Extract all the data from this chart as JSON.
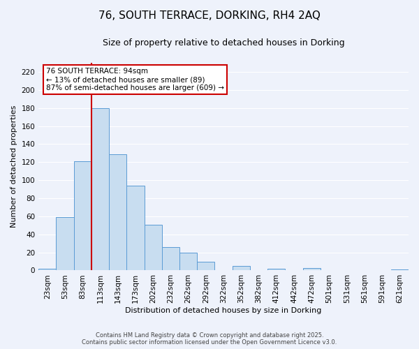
{
  "title": "76, SOUTH TERRACE, DORKING, RH4 2AQ",
  "subtitle": "Size of property relative to detached houses in Dorking",
  "xlabel": "Distribution of detached houses by size in Dorking",
  "ylabel": "Number of detached properties",
  "bar_color": "#c8ddf0",
  "bar_edge_color": "#5b9bd5",
  "background_color": "#eef2fb",
  "grid_color": "#ffffff",
  "bin_labels": [
    "23sqm",
    "53sqm",
    "83sqm",
    "113sqm",
    "143sqm",
    "173sqm",
    "202sqm",
    "232sqm",
    "262sqm",
    "292sqm",
    "322sqm",
    "352sqm",
    "382sqm",
    "412sqm",
    "442sqm",
    "472sqm",
    "501sqm",
    "531sqm",
    "561sqm",
    "591sqm",
    "621sqm"
  ],
  "bar_values": [
    2,
    59,
    121,
    180,
    129,
    94,
    51,
    26,
    20,
    10,
    0,
    5,
    0,
    2,
    0,
    3,
    0,
    0,
    0,
    0,
    1
  ],
  "ylim": [
    0,
    230
  ],
  "yticks": [
    0,
    20,
    40,
    60,
    80,
    100,
    120,
    140,
    160,
    180,
    200,
    220
  ],
  "vline_color": "#cc0000",
  "annotation_title": "76 SOUTH TERRACE: 94sqm",
  "annotation_line1": "← 13% of detached houses are smaller (89)",
  "annotation_line2": "87% of semi-detached houses are larger (609) →",
  "annotation_box_facecolor": "#ffffff",
  "annotation_box_edgecolor": "#cc0000",
  "footer_line1": "Contains HM Land Registry data © Crown copyright and database right 2025.",
  "footer_line2": "Contains public sector information licensed under the Open Government Licence v3.0.",
  "title_fontsize": 11,
  "subtitle_fontsize": 9,
  "axis_label_fontsize": 8,
  "tick_label_fontsize": 7.5,
  "annotation_fontsize": 7.5,
  "footer_fontsize": 6
}
